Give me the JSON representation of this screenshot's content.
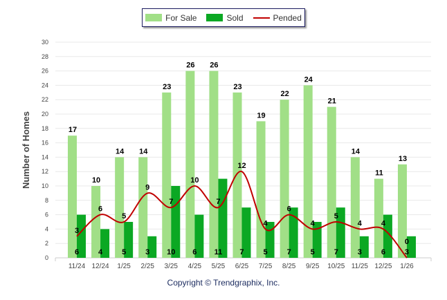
{
  "legend": {
    "for_sale": "For Sale",
    "sold": "Sold",
    "pended": "Pended"
  },
  "copyright": "Copyright © Trendgraphix, Inc.",
  "colors": {
    "for_sale": "#a1df87",
    "sold": "#0ba823",
    "pended": "#c00000"
  },
  "chart_data": {
    "type": "bar",
    "title": "",
    "xlabel": "",
    "ylabel": "Number of Homes",
    "ylim": [
      0,
      30
    ],
    "yticks": [
      0,
      2,
      4,
      6,
      8,
      10,
      12,
      14,
      16,
      18,
      20,
      22,
      24,
      26,
      28,
      30
    ],
    "grid": true,
    "legend_position": "top",
    "categories": [
      "11/24",
      "12/24",
      "1/25",
      "2/25",
      "3/25",
      "4/25",
      "5/25",
      "6/25",
      "7/25",
      "8/25",
      "9/25",
      "10/25",
      "11/25",
      "12/25",
      "1/26"
    ],
    "series": [
      {
        "name": "For Sale",
        "type": "bar",
        "values": [
          17,
          10,
          14,
          14,
          23,
          26,
          26,
          23,
          19,
          22,
          24,
          21,
          14,
          11,
          13
        ]
      },
      {
        "name": "Sold",
        "type": "bar",
        "values": [
          6,
          4,
          5,
          3,
          10,
          6,
          11,
          7,
          5,
          7,
          5,
          7,
          3,
          6,
          3
        ]
      },
      {
        "name": "Pended",
        "type": "line",
        "values": [
          3,
          6,
          5,
          9,
          7,
          10,
          7,
          12,
          4,
          6,
          4,
          5,
          4,
          4,
          0
        ]
      }
    ]
  }
}
